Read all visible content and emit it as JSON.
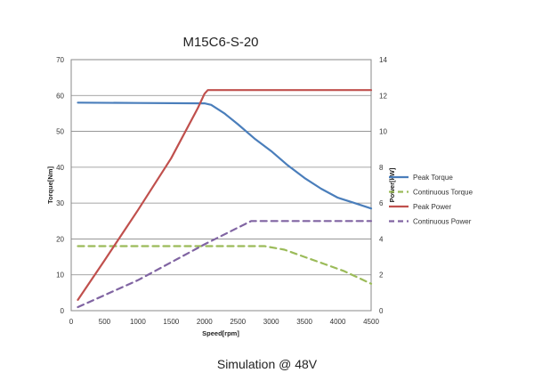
{
  "chart_data": {
    "type": "line",
    "title": "M15C6-S-20",
    "xlabel": "Speed[rpm]",
    "ylabel": "Torque[Nm]",
    "y2label": "Power[kW]",
    "xlim": [
      0,
      4500
    ],
    "ylim": [
      0,
      70
    ],
    "y2lim": [
      0,
      14
    ],
    "x_ticks": [
      0,
      500,
      1000,
      1500,
      2000,
      2500,
      3000,
      3500,
      4000,
      4500
    ],
    "y_ticks": [
      0,
      10,
      20,
      30,
      40,
      50,
      60,
      70
    ],
    "y2_ticks": [
      0,
      2,
      4,
      6,
      8,
      10,
      12,
      14
    ],
    "grid": "horizontal",
    "legend_position": "right",
    "series": [
      {
        "name": "Peak Torque",
        "axis": "left",
        "style": "solid",
        "color": "#4a7ebb",
        "points": [
          [
            100,
            58
          ],
          [
            1000,
            57.9
          ],
          [
            2000,
            57.8
          ],
          [
            2100,
            57.4
          ],
          [
            2300,
            55
          ],
          [
            2500,
            52
          ],
          [
            2750,
            48
          ],
          [
            3000,
            44.5
          ],
          [
            3250,
            40.5
          ],
          [
            3500,
            37
          ],
          [
            3750,
            34
          ],
          [
            4000,
            31.5
          ],
          [
            4250,
            30
          ],
          [
            4500,
            28.5
          ]
        ]
      },
      {
        "name": "Continuous Torque",
        "axis": "left",
        "style": "dashed",
        "color": "#9bbb59",
        "points": [
          [
            100,
            18
          ],
          [
            1000,
            18
          ],
          [
            2000,
            18
          ],
          [
            2900,
            18
          ],
          [
            3200,
            17
          ],
          [
            3500,
            15
          ],
          [
            3800,
            13
          ],
          [
            4100,
            11
          ],
          [
            4500,
            7.5
          ]
        ]
      },
      {
        "name": "Peak Power",
        "axis": "right",
        "style": "solid",
        "color": "#c0504d",
        "points": [
          [
            100,
            0.6
          ],
          [
            500,
            2.8
          ],
          [
            1000,
            5.6
          ],
          [
            1500,
            8.5
          ],
          [
            1900,
            11.3
          ],
          [
            2000,
            12.1
          ],
          [
            2050,
            12.3
          ],
          [
            3000,
            12.3
          ],
          [
            4000,
            12.3
          ],
          [
            4500,
            12.3
          ]
        ]
      },
      {
        "name": "Continuous Power",
        "axis": "right",
        "style": "dashed",
        "color": "#8064a2",
        "points": [
          [
            100,
            0.2
          ],
          [
            1000,
            1.7
          ],
          [
            2000,
            3.7
          ],
          [
            2700,
            5
          ],
          [
            3500,
            5
          ],
          [
            4500,
            5
          ]
        ]
      }
    ]
  },
  "footer": {
    "caption": "Simulation @ 48V"
  }
}
